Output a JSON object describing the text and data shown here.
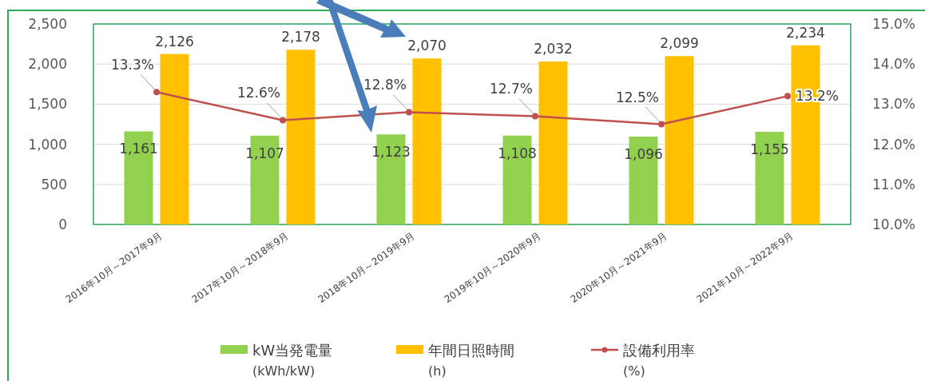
{
  "chart_data": {
    "type": "bar",
    "categories": [
      "2016年10月～2017年9月",
      "2017年10月～2018年9月",
      "2018年10月～2019年9月",
      "2019年10月～2020年9月",
      "2020年10月～2021年9月",
      "2021年10月～2022年9月"
    ],
    "series": [
      {
        "name": "kW当発電量 (kWh/kW)",
        "color": "#92d050",
        "values": [
          1161,
          1107,
          1123,
          1108,
          1096,
          1155
        ],
        "value_labels": [
          "1,161",
          "1,107",
          "1,123",
          "1,108",
          "1,096",
          "1,155"
        ]
      },
      {
        "name": "年間日照時間 (h)",
        "color": "#ffc000",
        "values": [
          2126,
          2178,
          2070,
          2032,
          2099,
          2234
        ],
        "value_labels": [
          "2,126",
          "2,178",
          "2,070",
          "2,032",
          "2,099",
          "2,234"
        ]
      },
      {
        "name": "設備利用率 (%)",
        "type": "line",
        "axis": "y2",
        "color": "#c0504d",
        "values": [
          13.3,
          12.6,
          12.8,
          12.7,
          12.5,
          13.2
        ],
        "value_labels": [
          "13.3%",
          "12.6%",
          "12.8%",
          "12.7%",
          "12.5%",
          "13.2%"
        ]
      }
    ],
    "ylim": [
      0,
      2500
    ],
    "yticks": [
      {
        "value": 0,
        "label": "0"
      },
      {
        "value": 500,
        "label": "500"
      },
      {
        "value": 1000,
        "label": "1,000"
      },
      {
        "value": 1500,
        "label": "1,500"
      },
      {
        "value": 2000,
        "label": "2,000"
      },
      {
        "value": 2500,
        "label": "2,500"
      }
    ],
    "y2lim": [
      10,
      15
    ],
    "y2ticks": [
      {
        "value": 10,
        "label": "10.0%"
      },
      {
        "value": 11,
        "label": "11.0%"
      },
      {
        "value": 12,
        "label": "12.0%"
      },
      {
        "value": 13,
        "label": "13.0%"
      },
      {
        "value": 14,
        "label": "14.0%"
      },
      {
        "value": 15,
        "label": "15.0%"
      }
    ],
    "grid": "y",
    "legend": "bottom",
    "marker": "circle",
    "line_style": "solid"
  }
}
